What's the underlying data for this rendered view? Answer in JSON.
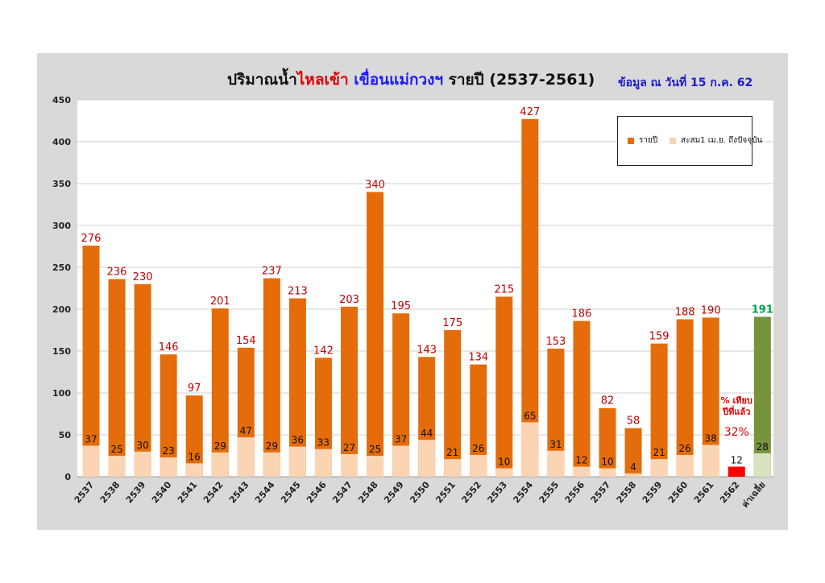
{
  "title": {
    "part1": "ปริมาณน้ำ",
    "part2": "ไหลเข้า",
    "part3": " ",
    "part4": "เขื่อนแม่กวงฯ",
    "part5": " รายปี  (2537-2561)"
  },
  "date_note": "ข้อมูล ณ วันที่ 15 ก.ค. 62",
  "comparison_note": {
    "line1": "% เทียบ",
    "line2": "ปีที่แล้ว",
    "value": "32%"
  },
  "colors": {
    "annual": "#e46c0a",
    "cumulative": "#fbd4b4",
    "current_year": "#ff0000",
    "average": "#77933c",
    "average_cumulative": "#d7e4bd",
    "annual_label": "#c00000",
    "average_label": "#00a050"
  },
  "chart_data": {
    "type": "bar",
    "title": "ปริมาณน้ำไหลเข้า เขื่อนแม่กวงฯ รายปี (2537-2561)",
    "categories": [
      "2537",
      "2538",
      "2539",
      "2540",
      "2541",
      "2542",
      "2543",
      "2544",
      "2545",
      "2546",
      "2547",
      "2548",
      "2549",
      "2550",
      "2551",
      "2552",
      "2553",
      "2554",
      "2555",
      "2556",
      "2557",
      "2558",
      "2559",
      "2560",
      "2561",
      "2562",
      "ค่าเฉลี่ย"
    ],
    "series": [
      {
        "name": "รายปี",
        "values": [
          276,
          236,
          230,
          146,
          97,
          201,
          154,
          237,
          213,
          142,
          203,
          340,
          195,
          143,
          175,
          134,
          215,
          427,
          153,
          186,
          82,
          58,
          159,
          188,
          190,
          null,
          191
        ]
      },
      {
        "name": "สะสม1 เม.ย. ถึงปัจจุบัน",
        "values": [
          37,
          25,
          30,
          23,
          16,
          29,
          47,
          29,
          36,
          33,
          27,
          25,
          37,
          44,
          21,
          26,
          10,
          65,
          31,
          12,
          10,
          4,
          21,
          26,
          38,
          12,
          28
        ]
      }
    ],
    "ylim": [
      0,
      450
    ],
    "yticks": [
      0,
      50,
      100,
      150,
      200,
      250,
      300,
      350,
      400,
      450
    ],
    "grid": true,
    "legend": "top-right"
  }
}
